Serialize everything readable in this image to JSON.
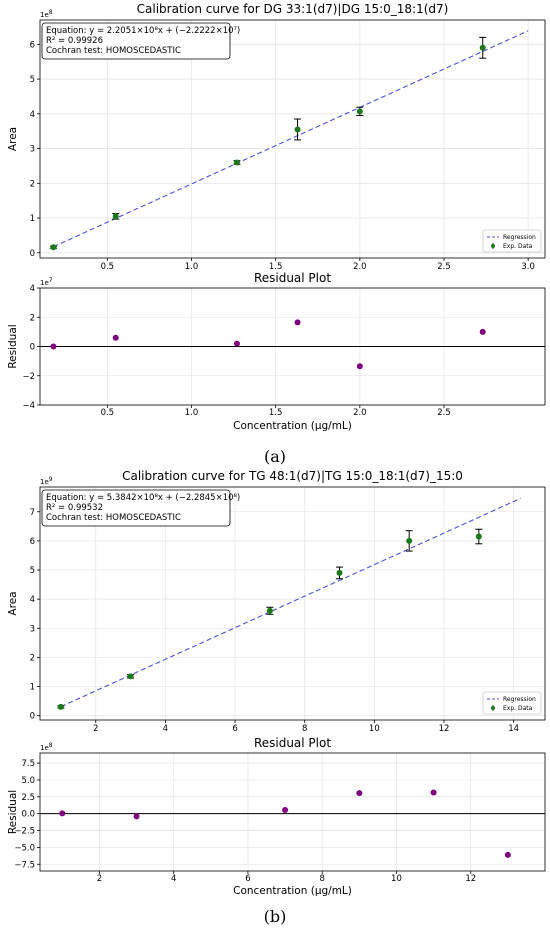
{
  "chart_data": [
    {
      "type": "scatter",
      "title": "Calibration curve for DG 33:1(d7)|DG 15:0_18:1(d7)",
      "xlabel": "",
      "ylabel": "Area",
      "y_multiplier": "1e8",
      "xlim": [
        0.1,
        3.1
      ],
      "ylim": [
        -0.15,
        6.7
      ],
      "xticks": [
        "0.5",
        "1.0",
        "1.5",
        "2.0",
        "2.5",
        "3.0"
      ],
      "yticks": [
        "0",
        "1",
        "2",
        "3",
        "4",
        "5",
        "6"
      ],
      "equation": "Equation: y = 2.2051×10⁸x + (−2.2222×10⁷)",
      "r2": "R² = 0.99926",
      "cochran": "Cochran test: HOMOSCEDASTIC",
      "legend": {
        "position": "lower-right",
        "regression": "Regression",
        "data": "Exp. Data"
      },
      "regression": {
        "x": [
          0.18,
          3.0
        ],
        "y": [
          0.175,
          6.39
        ]
      },
      "series": [
        {
          "x": [
            0.18,
            0.55,
            1.27,
            1.63,
            2.0,
            2.73
          ],
          "y": [
            0.16,
            1.05,
            2.6,
            3.55,
            4.07,
            5.9
          ],
          "err": [
            0.03,
            0.08,
            0.05,
            0.3,
            0.12,
            0.3
          ]
        }
      ],
      "grid": true
    },
    {
      "type": "scatter",
      "title": "Residual Plot",
      "xlabel": "Concentration (µg/mL)",
      "ylabel": "Residual",
      "y_multiplier": "1e7",
      "xlim": [
        0.1,
        3.1
      ],
      "ylim": [
        -4,
        4
      ],
      "xticks": [
        "0.5",
        "1.0",
        "1.5",
        "2.0",
        "2.5"
      ],
      "yticks": [
        "4",
        "2",
        "0",
        "−2",
        "−4"
      ],
      "series": [
        {
          "x": [
            0.18,
            0.55,
            1.27,
            1.63,
            2.0,
            2.73
          ],
          "y": [
            0.0,
            0.6,
            0.2,
            1.65,
            -1.35,
            1.0
          ]
        }
      ],
      "grid": true
    },
    {
      "type": "scatter",
      "title": "Calibration curve for TG 48:1(d7)|TG 15:0_18:1(d7)_15:0",
      "xlabel": "",
      "ylabel": "Area",
      "y_multiplier": "1e9",
      "xlim": [
        0.4,
        14.9
      ],
      "ylim": [
        -0.15,
        7.85
      ],
      "xticks": [
        "2",
        "4",
        "6",
        "8",
        "10",
        "12",
        "14"
      ],
      "yticks": [
        "0",
        "1",
        "2",
        "3",
        "4",
        "5",
        "6",
        "7"
      ],
      "equation": "Equation: y = 5.3842×10⁸x + (−2.2845×10⁸)",
      "r2": "R² = 0.99532",
      "cochran": "Cochran test: HOMOSCEDASTIC",
      "legend": {
        "position": "lower-right",
        "regression": "Regression",
        "data": "Exp. Data"
      },
      "regression": {
        "x": [
          1.0,
          14.2
        ],
        "y": [
          0.31,
          7.46
        ]
      },
      "series": [
        {
          "x": [
            1,
            3,
            7,
            9,
            11,
            13
          ],
          "y": [
            0.3,
            1.35,
            3.6,
            4.9,
            6.0,
            6.15
          ],
          "err": [
            0.04,
            0.06,
            0.12,
            0.2,
            0.35,
            0.25
          ]
        }
      ],
      "grid": true
    },
    {
      "type": "scatter",
      "title": "Residual Plot",
      "xlabel": "Concentration (µg/mL)",
      "ylabel": "Residual",
      "y_multiplier": "1e8",
      "xlim": [
        0.4,
        14.0
      ],
      "ylim": [
        -8.5,
        9.0
      ],
      "xticks": [
        "2",
        "4",
        "6",
        "8",
        "10",
        "12"
      ],
      "yticks": [
        "7.5",
        "5.0",
        "2.5",
        "0.0",
        "−2.5",
        "−5.0",
        "−7.5"
      ],
      "series": [
        {
          "x": [
            1,
            3,
            7,
            9,
            11,
            13
          ],
          "y": [
            0.05,
            -0.4,
            0.55,
            3.05,
            3.15,
            -6.1
          ]
        }
      ],
      "grid": true
    }
  ],
  "captions": {
    "a": "(a)",
    "b": "(b)"
  }
}
